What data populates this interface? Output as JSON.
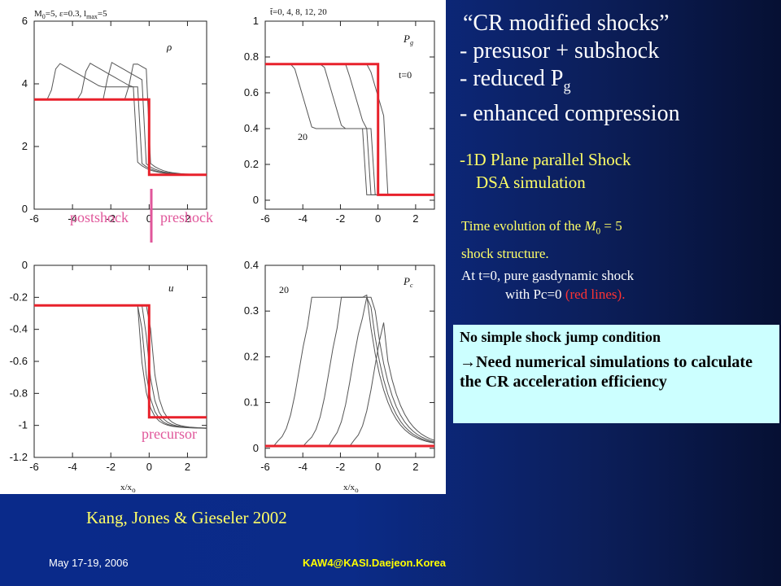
{
  "slide": {
    "title_lines": [
      "“CR modified shocks”",
      "- presusor + subshock",
      "- reduced P",
      "- enhanced  compression"
    ],
    "pg_sub": "g",
    "plane_lines": [
      "-1D Plane parallel Shock",
      "DSA simulation"
    ],
    "time_evo_line1_pre": "Time evolution of the ",
    "time_evo_M": "M",
    "time_evo_M_sub": "0",
    "time_evo_line1_post": " = 5",
    "time_evo_line2": "shock structure.",
    "at_t0_line1": "At t=0, pure gasdynamic shock",
    "at_t0_line2_pre": "with Pc=0 ",
    "at_t0_line2_red": "(red lines).",
    "box_heading": "No simple shock jump condition",
    "box_arrow": "→",
    "box_body": "Need numerical simulations to calculate the CR acceleration efficiency",
    "citation": "Kang, Jones & Gieseler 2002",
    "footer_date": "May 17-19, 2006",
    "footer_conference": "KAW4@KASI.Daejeon.Korea"
  },
  "annotations": {
    "postshock": "postshock",
    "preshock": "preshock",
    "precursor": "precursor",
    "t0": "t=0",
    "curve20_pg": "20",
    "curve20_pc": "20"
  },
  "colors": {
    "initial_shock": "#e8212b",
    "divider": "#e0569a",
    "curves": "#555555"
  },
  "chart_data": [
    {
      "type": "line",
      "panel_title": "M₀=5, ε=0.3, l_max=5",
      "title_parts": {
        "M": "M",
        "Msub": "0",
        "rest": "=5, ε=0.3, l",
        "lsub": "max",
        "end": "=5"
      },
      "ylabel": "ρ",
      "xlabel": "",
      "xlim": [
        -6,
        3
      ],
      "ylim": [
        0,
        6
      ],
      "xticks": [
        "-6",
        "-4",
        "-2",
        "0",
        "2"
      ],
      "yticks": [
        "0",
        "2",
        "4",
        "6"
      ],
      "initial": {
        "x": [
          -6,
          0,
          0,
          3
        ],
        "y": [
          3.5,
          3.5,
          1.1,
          1.1
        ]
      }
    },
    {
      "type": "line",
      "panel_title": "t̃=0, 4, 8, 12, 20",
      "ylabel": "P_g",
      "ylabel_main": "P",
      "ylabel_sub": "g",
      "xlabel": "",
      "xlim": [
        -6,
        3
      ],
      "ylim": [
        -0.05,
        1
      ],
      "xticks": [
        "-6",
        "-4",
        "-2",
        "0",
        "2"
      ],
      "yticks": [
        "0",
        "0.2",
        "0.4",
        "0.6",
        "0.8",
        "1"
      ],
      "initial": {
        "x": [
          -6,
          0,
          0,
          3
        ],
        "y": [
          0.76,
          0.76,
          0.03,
          0.03
        ]
      }
    },
    {
      "type": "line",
      "ylabel": "u",
      "xlabel": "x/xₒ",
      "xlabel_main": "x/x",
      "xlabel_sub": "o",
      "xlim": [
        -6,
        3
      ],
      "ylim": [
        -1.2,
        0
      ],
      "xticks": [
        "-6",
        "-4",
        "-2",
        "0",
        "2"
      ],
      "yticks": [
        "0",
        "-0.2",
        "-0.4",
        "-0.6",
        "-0.8",
        "-1",
        "-1.2"
      ],
      "initial": {
        "x": [
          -6,
          0,
          0,
          3
        ],
        "y": [
          -0.25,
          -0.25,
          -0.95,
          -0.95
        ]
      }
    },
    {
      "type": "line",
      "ylabel": "P_c",
      "ylabel_main": "P",
      "ylabel_sub": "c",
      "xlabel": "x/xₒ",
      "xlabel_main": "x/x",
      "xlabel_sub": "o",
      "xlim": [
        -6,
        3
      ],
      "ylim": [
        -0.02,
        0.4
      ],
      "xticks": [
        "-6",
        "-4",
        "-2",
        "0",
        "2"
      ],
      "yticks": [
        "0",
        "0.1",
        "0.2",
        "0.3",
        "0.4"
      ],
      "initial": {
        "x": [
          -6,
          3
        ],
        "y": [
          0.005,
          0.005
        ]
      }
    }
  ]
}
